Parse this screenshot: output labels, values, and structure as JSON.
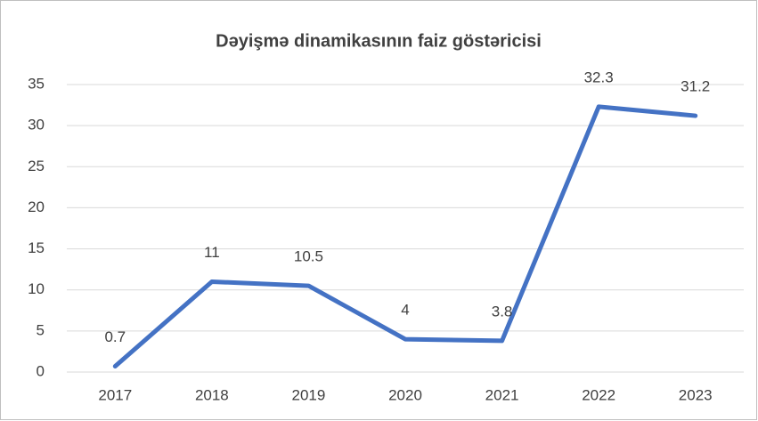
{
  "chart_data": {
    "type": "line",
    "title": "Dəyişmə dinamikasının faiz göstəricisi",
    "categories": [
      "2017",
      "2018",
      "2019",
      "2020",
      "2021",
      "2022",
      "2023"
    ],
    "values": [
      0.7,
      11,
      10.5,
      4,
      3.8,
      32.3,
      31.2
    ],
    "color": "#4472c4",
    "ylim": [
      0,
      35
    ],
    "yticks": [
      0,
      5,
      10,
      15,
      20,
      25,
      30,
      35
    ],
    "grid": true
  }
}
